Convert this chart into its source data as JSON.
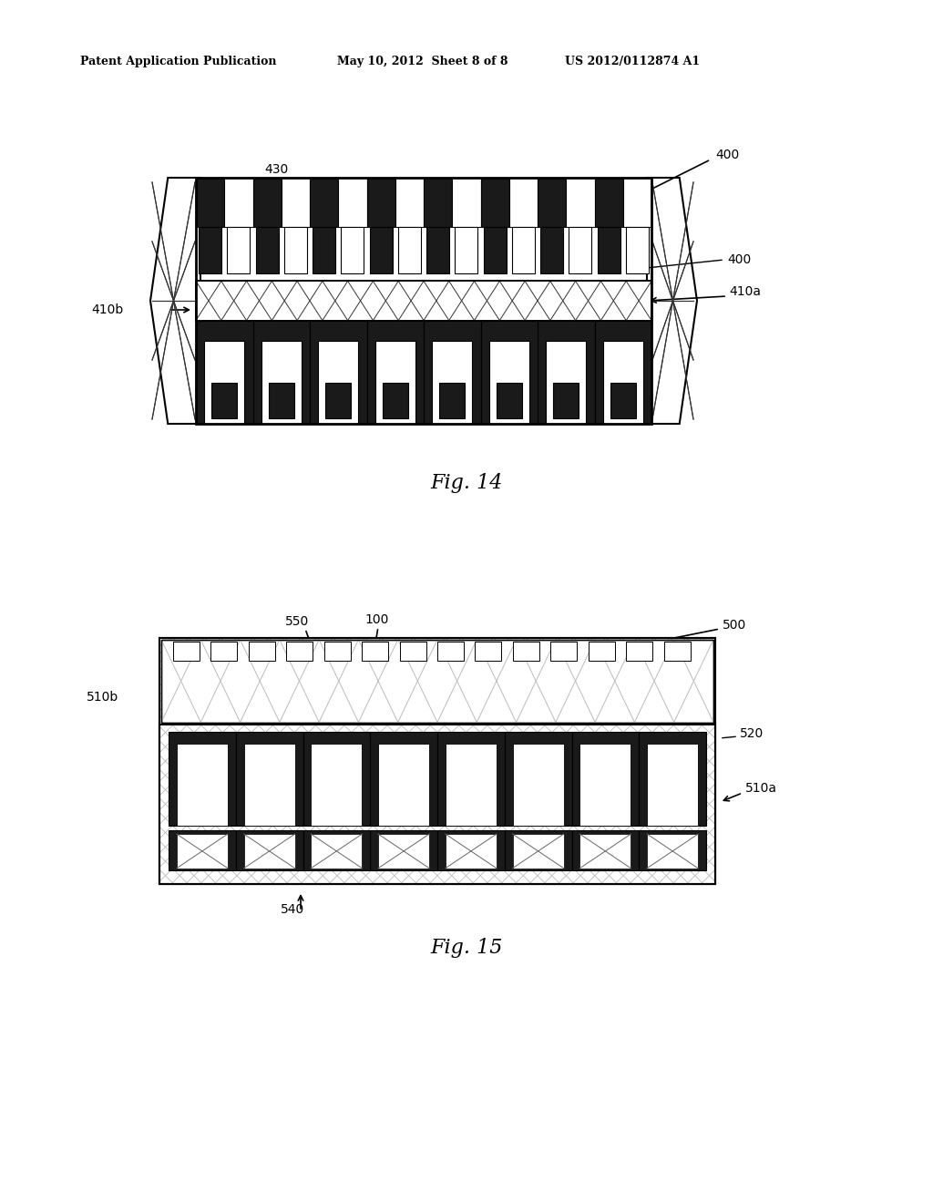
{
  "header_left": "Patent Application Publication",
  "header_mid": "May 10, 2012  Sheet 8 of 8",
  "header_right": "US 2012/0112874 A1",
  "fig14_caption": "Fig. 14",
  "fig15_caption": "Fig. 15",
  "bg_color": "#ffffff",
  "line_color": "#000000",
  "dark_fill": "#1a1a1a",
  "mid_fill": "#555555",
  "light_fill": "#cccccc",
  "hatch_fill": "#aaaaaa",
  "fig14": {
    "label_400_top": "400",
    "label_400_right": "400",
    "label_430": "430",
    "label_410a": "410a",
    "label_410b": "410b"
  },
  "fig15": {
    "label_500": "500",
    "label_550": "550",
    "label_100": "100",
    "label_510b": "510b",
    "label_520": "520",
    "label_510a": "510a",
    "label_540": "540"
  }
}
